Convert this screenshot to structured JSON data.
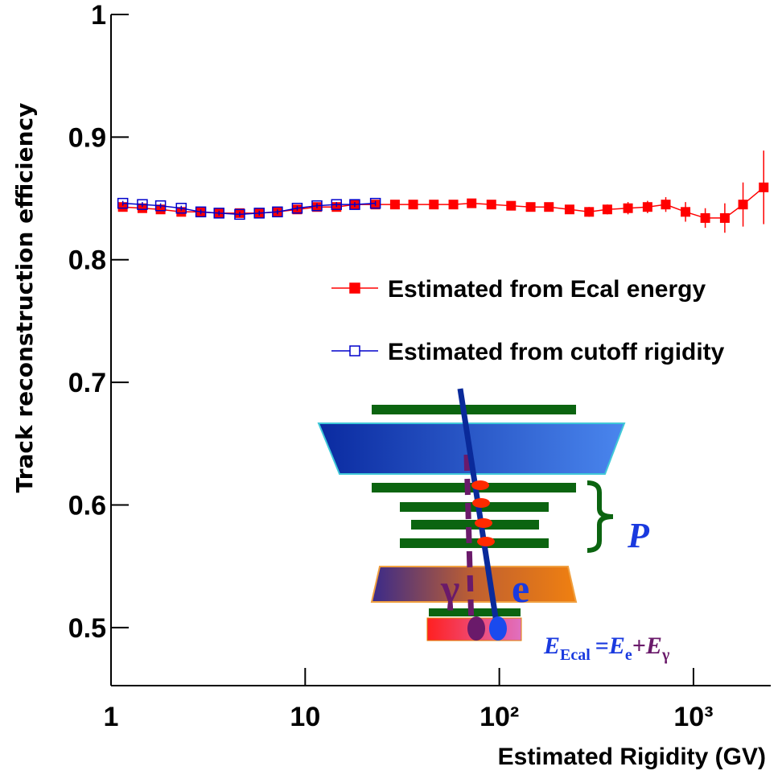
{
  "chart_data": {
    "type": "scatter",
    "xlabel": "Estimated Rigidity (GV)",
    "ylabel": "Track reconstruction efficiency",
    "xlog": true,
    "xlim": [
      1,
      2500
    ],
    "ylim": [
      0.45,
      1
    ],
    "xticks": [
      1,
      10,
      {
        "value": 100,
        "label": "10²"
      },
      {
        "value": 1000,
        "label": "10³"
      }
    ],
    "yticks": [
      0.5,
      0.6,
      0.7,
      0.8,
      0.9,
      1
    ],
    "legend": "upper right",
    "series": [
      {
        "name": "Estimated from Ecal energy",
        "color": "#ff0000",
        "marker": "filled-square",
        "x": [
          1.15,
          1.45,
          1.8,
          2.3,
          2.9,
          3.6,
          4.6,
          5.8,
          7.2,
          9.1,
          11.5,
          14.5,
          18,
          23,
          29,
          36,
          46,
          58,
          72,
          91,
          115,
          145,
          180,
          230,
          290,
          360,
          460,
          580,
          720,
          910,
          1150,
          1450,
          1800,
          2300
        ],
        "values": [
          0.843,
          0.842,
          0.841,
          0.839,
          0.839,
          0.838,
          0.838,
          0.838,
          0.839,
          0.841,
          0.843,
          0.843,
          0.845,
          0.845,
          0.845,
          0.845,
          0.845,
          0.845,
          0.846,
          0.845,
          0.844,
          0.843,
          0.843,
          0.841,
          0.839,
          0.841,
          0.842,
          0.843,
          0.845,
          0.839,
          0.834,
          0.834,
          0.845,
          0.859
        ],
        "errors": [
          0.003,
          0.003,
          0.003,
          0.003,
          0.003,
          0.003,
          0.003,
          0.003,
          0.003,
          0.003,
          0.003,
          0.003,
          0.003,
          0.003,
          0.003,
          0.003,
          0.003,
          0.003,
          0.003,
          0.003,
          0.003,
          0.003,
          0.003,
          0.003,
          0.004,
          0.004,
          0.005,
          0.005,
          0.006,
          0.008,
          0.008,
          0.012,
          0.018,
          0.03
        ]
      },
      {
        "name": "Estimated from cutoff rigidity",
        "color": "#0000cc",
        "marker": "open-square",
        "x": [
          1.15,
          1.45,
          1.8,
          2.3,
          2.9,
          3.6,
          4.6,
          5.8,
          7.2,
          9.1,
          11.5,
          14.5,
          18,
          23
        ],
        "values": [
          0.846,
          0.845,
          0.844,
          0.842,
          0.839,
          0.838,
          0.837,
          0.838,
          0.839,
          0.842,
          0.844,
          0.845,
          0.845,
          0.846
        ],
        "errors": [
          0.002,
          0.002,
          0.002,
          0.002,
          0.002,
          0.002,
          0.002,
          0.002,
          0.002,
          0.002,
          0.002,
          0.002,
          0.002,
          0.002
        ]
      }
    ]
  },
  "inset": {
    "momentum": "P",
    "electron": "e",
    "photon": "γ",
    "formula": [
      "E",
      "Ecal",
      "=",
      "E",
      "e",
      "+",
      "E",
      "γ"
    ]
  }
}
